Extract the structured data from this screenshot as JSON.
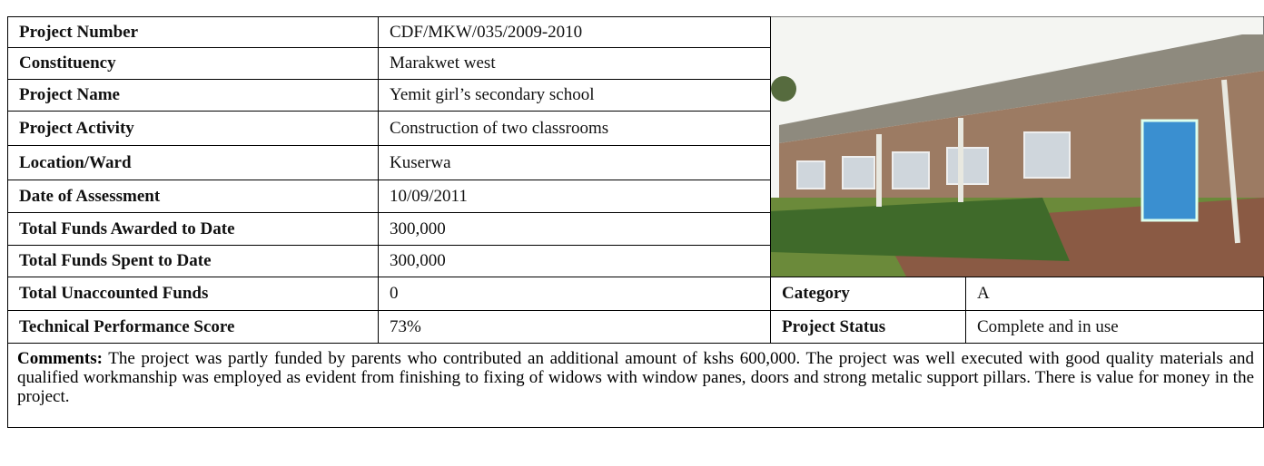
{
  "rows": [
    {
      "label": "Project Number",
      "value": "CDF/MKW/035/2009-2010"
    },
    {
      "label": "Constituency",
      "value": "Marakwet west"
    },
    {
      "label": "Project Name",
      "value": "Yemit girl’s secondary school"
    },
    {
      "label": "Project Activity",
      "value": "Construction of two classrooms"
    },
    {
      "label": "Location/Ward",
      "value": "Kuserwa"
    },
    {
      "label": "Date of Assessment",
      "value": "10/09/2011"
    },
    {
      "label": "Total Funds Awarded to Date",
      "value": "300,000"
    },
    {
      "label": "Total Funds Spent to Date",
      "value": "300,000"
    },
    {
      "label": "Total Unaccounted Funds",
      "value": "0"
    },
    {
      "label": "Technical Performance Score",
      "value": "73%"
    }
  ],
  "side_rows": [
    {
      "label": "Category",
      "value": "A"
    },
    {
      "label": "Project Status",
      "value": "Complete and in use"
    }
  ],
  "comments": {
    "label": "Comments:",
    "text": "The project was partly funded by parents who contributed an additional amount of kshs 600,000. The project was well executed with good quality materials and qualified workmanship was employed as evident from finishing to fixing of widows with window panes, doors and strong metalic support pillars. There is value for money in the project."
  }
}
